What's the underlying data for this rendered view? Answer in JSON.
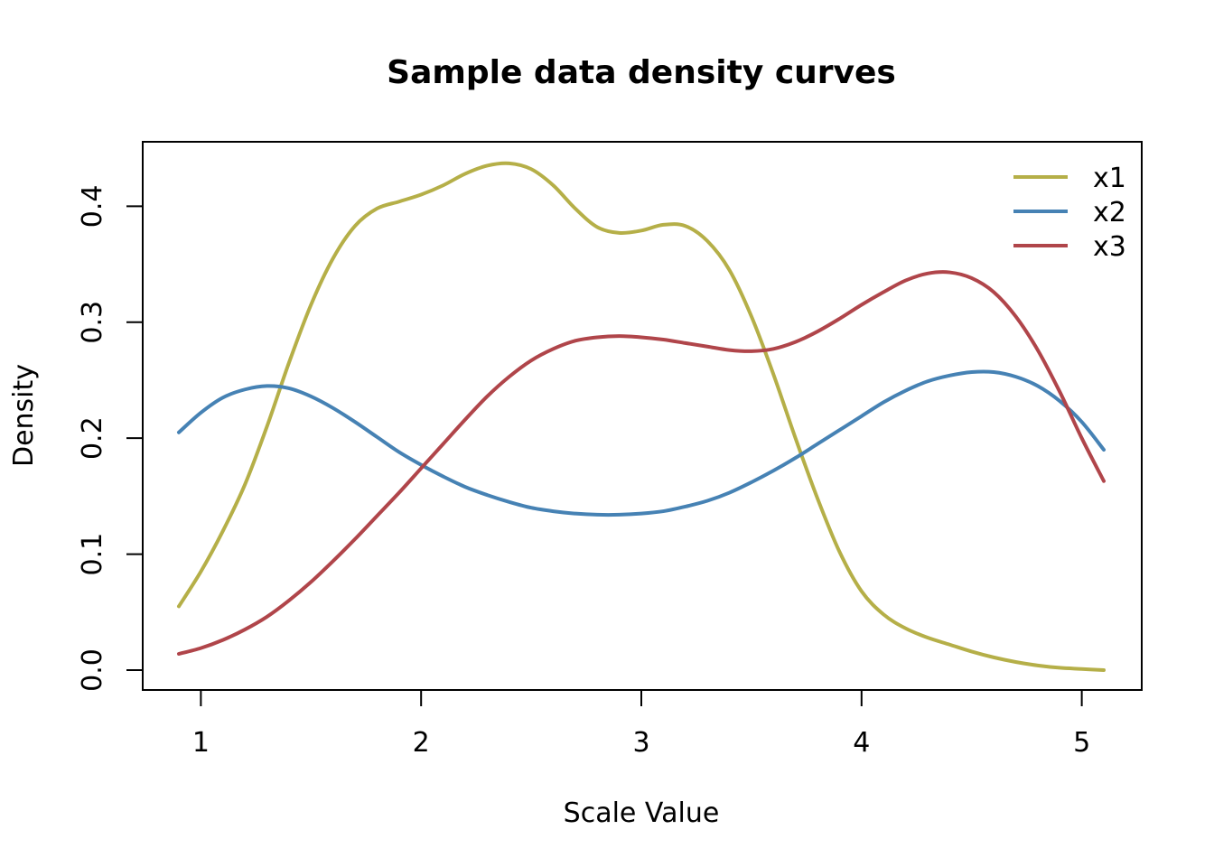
{
  "chart_data": {
    "type": "line",
    "title": "Sample data density curves",
    "xlabel": "Scale Value",
    "ylabel": "Density",
    "xlim": [
      0.9,
      5.1
    ],
    "ylim": [
      0.0,
      0.44
    ],
    "x_ticks": [
      1,
      2,
      3,
      4,
      5
    ],
    "x_tick_labels": [
      "1",
      "2",
      "3",
      "4",
      "5"
    ],
    "y_ticks": [
      0.0,
      0.1,
      0.2,
      0.3,
      0.4
    ],
    "y_tick_labels": [
      "0.0",
      "0.1",
      "0.2",
      "0.3",
      "0.4"
    ],
    "grid": false,
    "legend_position": "top-right",
    "series": [
      {
        "name": "x1",
        "color": "#B5AF48",
        "points": [
          [
            0.9,
            0.055
          ],
          [
            1.0,
            0.085
          ],
          [
            1.1,
            0.12
          ],
          [
            1.2,
            0.16
          ],
          [
            1.3,
            0.21
          ],
          [
            1.4,
            0.265
          ],
          [
            1.5,
            0.315
          ],
          [
            1.6,
            0.355
          ],
          [
            1.7,
            0.383
          ],
          [
            1.8,
            0.398
          ],
          [
            1.9,
            0.404
          ],
          [
            2.0,
            0.41
          ],
          [
            2.1,
            0.418
          ],
          [
            2.2,
            0.428
          ],
          [
            2.3,
            0.435
          ],
          [
            2.4,
            0.437
          ],
          [
            2.5,
            0.432
          ],
          [
            2.6,
            0.418
          ],
          [
            2.7,
            0.398
          ],
          [
            2.8,
            0.382
          ],
          [
            2.9,
            0.377
          ],
          [
            3.0,
            0.379
          ],
          [
            3.1,
            0.384
          ],
          [
            3.2,
            0.383
          ],
          [
            3.3,
            0.37
          ],
          [
            3.4,
            0.345
          ],
          [
            3.5,
            0.305
          ],
          [
            3.6,
            0.255
          ],
          [
            3.7,
            0.2
          ],
          [
            3.8,
            0.148
          ],
          [
            3.9,
            0.102
          ],
          [
            4.0,
            0.068
          ],
          [
            4.1,
            0.048
          ],
          [
            4.2,
            0.036
          ],
          [
            4.3,
            0.028
          ],
          [
            4.4,
            0.022
          ],
          [
            4.5,
            0.016
          ],
          [
            4.6,
            0.011
          ],
          [
            4.7,
            0.007
          ],
          [
            4.8,
            0.004
          ],
          [
            4.9,
            0.002
          ],
          [
            5.0,
            0.001
          ],
          [
            5.1,
            0.0
          ]
        ]
      },
      {
        "name": "x2",
        "color": "#4682B4",
        "points": [
          [
            0.9,
            0.205
          ],
          [
            1.0,
            0.222
          ],
          [
            1.1,
            0.235
          ],
          [
            1.2,
            0.242
          ],
          [
            1.3,
            0.245
          ],
          [
            1.4,
            0.243
          ],
          [
            1.5,
            0.236
          ],
          [
            1.6,
            0.226
          ],
          [
            1.7,
            0.214
          ],
          [
            1.8,
            0.201
          ],
          [
            1.9,
            0.188
          ],
          [
            2.0,
            0.177
          ],
          [
            2.1,
            0.167
          ],
          [
            2.2,
            0.158
          ],
          [
            2.3,
            0.151
          ],
          [
            2.4,
            0.145
          ],
          [
            2.5,
            0.14
          ],
          [
            2.6,
            0.137
          ],
          [
            2.7,
            0.135
          ],
          [
            2.8,
            0.134
          ],
          [
            2.9,
            0.134
          ],
          [
            3.0,
            0.135
          ],
          [
            3.1,
            0.137
          ],
          [
            3.2,
            0.141
          ],
          [
            3.3,
            0.146
          ],
          [
            3.4,
            0.153
          ],
          [
            3.5,
            0.162
          ],
          [
            3.6,
            0.172
          ],
          [
            3.7,
            0.183
          ],
          [
            3.8,
            0.195
          ],
          [
            3.9,
            0.207
          ],
          [
            4.0,
            0.219
          ],
          [
            4.1,
            0.231
          ],
          [
            4.2,
            0.241
          ],
          [
            4.3,
            0.249
          ],
          [
            4.4,
            0.254
          ],
          [
            4.5,
            0.257
          ],
          [
            4.6,
            0.257
          ],
          [
            4.7,
            0.253
          ],
          [
            4.8,
            0.245
          ],
          [
            4.9,
            0.232
          ],
          [
            5.0,
            0.214
          ],
          [
            5.1,
            0.19
          ]
        ]
      },
      {
        "name": "x3",
        "color": "#B0454A",
        "points": [
          [
            0.9,
            0.014
          ],
          [
            1.0,
            0.019
          ],
          [
            1.1,
            0.026
          ],
          [
            1.2,
            0.035
          ],
          [
            1.3,
            0.046
          ],
          [
            1.4,
            0.06
          ],
          [
            1.5,
            0.076
          ],
          [
            1.6,
            0.094
          ],
          [
            1.7,
            0.113
          ],
          [
            1.8,
            0.133
          ],
          [
            1.9,
            0.153
          ],
          [
            2.0,
            0.174
          ],
          [
            2.1,
            0.195
          ],
          [
            2.2,
            0.216
          ],
          [
            2.3,
            0.236
          ],
          [
            2.4,
            0.253
          ],
          [
            2.5,
            0.267
          ],
          [
            2.6,
            0.277
          ],
          [
            2.7,
            0.284
          ],
          [
            2.8,
            0.287
          ],
          [
            2.9,
            0.288
          ],
          [
            3.0,
            0.287
          ],
          [
            3.1,
            0.285
          ],
          [
            3.2,
            0.282
          ],
          [
            3.3,
            0.279
          ],
          [
            3.4,
            0.276
          ],
          [
            3.5,
            0.275
          ],
          [
            3.6,
            0.277
          ],
          [
            3.7,
            0.283
          ],
          [
            3.8,
            0.292
          ],
          [
            3.9,
            0.303
          ],
          [
            4.0,
            0.315
          ],
          [
            4.1,
            0.326
          ],
          [
            4.2,
            0.336
          ],
          [
            4.3,
            0.342
          ],
          [
            4.4,
            0.343
          ],
          [
            4.5,
            0.338
          ],
          [
            4.6,
            0.326
          ],
          [
            4.7,
            0.305
          ],
          [
            4.8,
            0.276
          ],
          [
            4.9,
            0.24
          ],
          [
            5.0,
            0.2
          ],
          [
            5.1,
            0.163
          ]
        ]
      }
    ]
  }
}
